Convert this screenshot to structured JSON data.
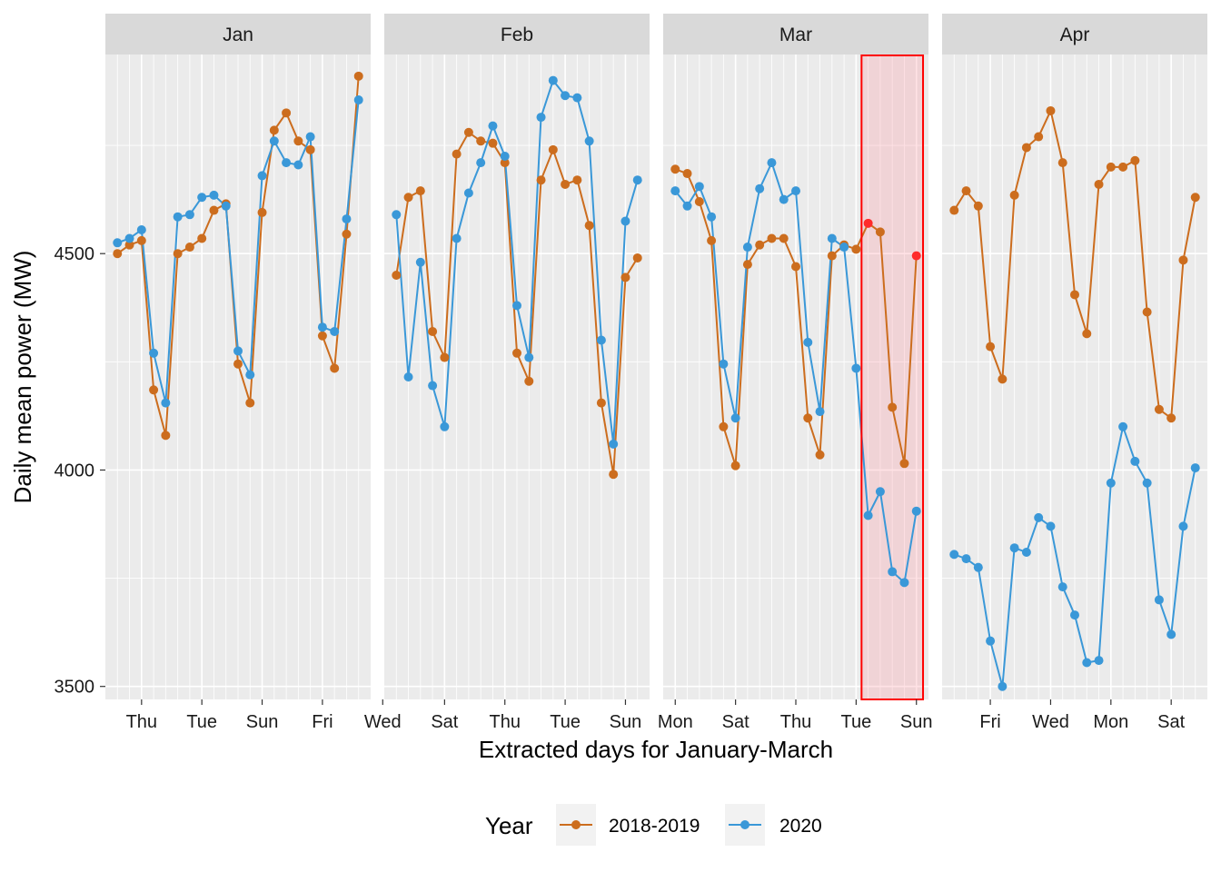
{
  "chart_data": {
    "type": "line",
    "xlabel": "Extracted days for January-March",
    "ylabel": "Daily mean power (MW)",
    "ylim": [
      3470,
      4960
    ],
    "y_ticks": [
      3500,
      4000,
      4500
    ],
    "grid": true,
    "legend": {
      "title": "Year",
      "placement": "bottom",
      "entries": [
        {
          "name": "2018-2019",
          "color": "#CC6D1E"
        },
        {
          "name": "2020",
          "color": "#3A98D8"
        }
      ]
    },
    "colors": {
      "series_2018_2019": "#CC6D1E",
      "series_2020": "#3A98D8",
      "highlight_stroke": "#FF0000",
      "highlight_fill": "rgba(255,150,160,0.28)",
      "highlight_point": "#FF2A2A"
    },
    "panels": [
      {
        "title": "Jan",
        "x_ticks": [
          {
            "x": 2,
            "label": "Thu"
          },
          {
            "x": 7,
            "label": "Tue"
          },
          {
            "x": 12,
            "label": "Sun"
          },
          {
            "x": 17,
            "label": "Fri"
          },
          {
            "x": 22,
            "label": "Wed"
          }
        ],
        "series": [
          {
            "name": "2018-2019",
            "values": [
              4500,
              4520,
              4530,
              4185,
              4080,
              4500,
              4515,
              4535,
              4600,
              4615,
              4245,
              4155,
              4595,
              4785,
              4825,
              4760,
              4740,
              4310,
              4235,
              4545,
              4910
            ]
          },
          {
            "name": "2020",
            "values": [
              4525,
              4535,
              4555,
              4270,
              4155,
              4585,
              4590,
              4630,
              4635,
              4610,
              4275,
              4220,
              4680,
              4760,
              4710,
              4705,
              4770,
              4330,
              4320,
              4580,
              4855
            ]
          }
        ]
      },
      {
        "title": "Feb",
        "x_ticks": [
          {
            "x": 4,
            "label": "Sat"
          },
          {
            "x": 9,
            "label": "Thu"
          },
          {
            "x": 14,
            "label": "Tue"
          },
          {
            "x": 19,
            "label": "Sun"
          }
        ],
        "series": [
          {
            "name": "2018-2019",
            "values": [
              4450,
              4630,
              4645,
              4320,
              4260,
              4730,
              4780,
              4760,
              4755,
              4710,
              4270,
              4205,
              4670,
              4740,
              4660,
              4670,
              4565,
              4155,
              3990,
              4445,
              4490
            ]
          },
          {
            "name": "2020",
            "values": [
              4590,
              4215,
              4480,
              4195,
              4100,
              4535,
              4640,
              4710,
              4795,
              4725,
              4380,
              4260,
              4815,
              4900,
              4865,
              4860,
              4760,
              4300,
              4060,
              4575,
              4670
            ]
          }
        ]
      },
      {
        "title": "Mar",
        "x_ticks": [
          {
            "x": 0,
            "label": "Mon"
          },
          {
            "x": 5,
            "label": "Sat"
          },
          {
            "x": 10,
            "label": "Thu"
          },
          {
            "x": 15,
            "label": "Tue"
          },
          {
            "x": 20,
            "label": "Sun"
          }
        ],
        "highlight_x_range": [
          16,
          21
        ],
        "series": [
          {
            "name": "2018-2019",
            "values": [
              4695,
              4685,
              4620,
              4530,
              4100,
              4010,
              4475,
              4520,
              4535,
              4535,
              4470,
              4120,
              4035,
              4495,
              4520,
              4510,
              4570,
              4550,
              4145,
              4015,
              4495
            ]
          },
          {
            "name": "2020",
            "values": [
              4645,
              4610,
              4655,
              4585,
              4245,
              4120,
              4515,
              4650,
              4710,
              4625,
              4645,
              4295,
              4135,
              4535,
              4515,
              4235,
              3895,
              3950,
              3765,
              3740,
              3905
            ]
          }
        ]
      },
      {
        "title": "Apr",
        "x_ticks": [
          {
            "x": 3,
            "label": "Fri"
          },
          {
            "x": 8,
            "label": "Wed"
          },
          {
            "x": 13,
            "label": "Mon"
          },
          {
            "x": 18,
            "label": "Sat"
          }
        ],
        "series": [
          {
            "name": "2018-2019",
            "values": [
              4600,
              4645,
              4610,
              4285,
              4210,
              4635,
              4745,
              4770,
              4830,
              4710,
              4405,
              4315,
              4660,
              4700,
              4700,
              4715,
              4365,
              4140,
              4120,
              4485,
              4630
            ]
          },
          {
            "name": "2020",
            "values": [
              3805,
              3795,
              3775,
              3605,
              3500,
              3820,
              3810,
              3890,
              3870,
              3730,
              3665,
              3555,
              3560,
              3970,
              4100,
              4020,
              3970,
              3700,
              3620,
              3870,
              4005
            ]
          }
        ]
      }
    ]
  }
}
